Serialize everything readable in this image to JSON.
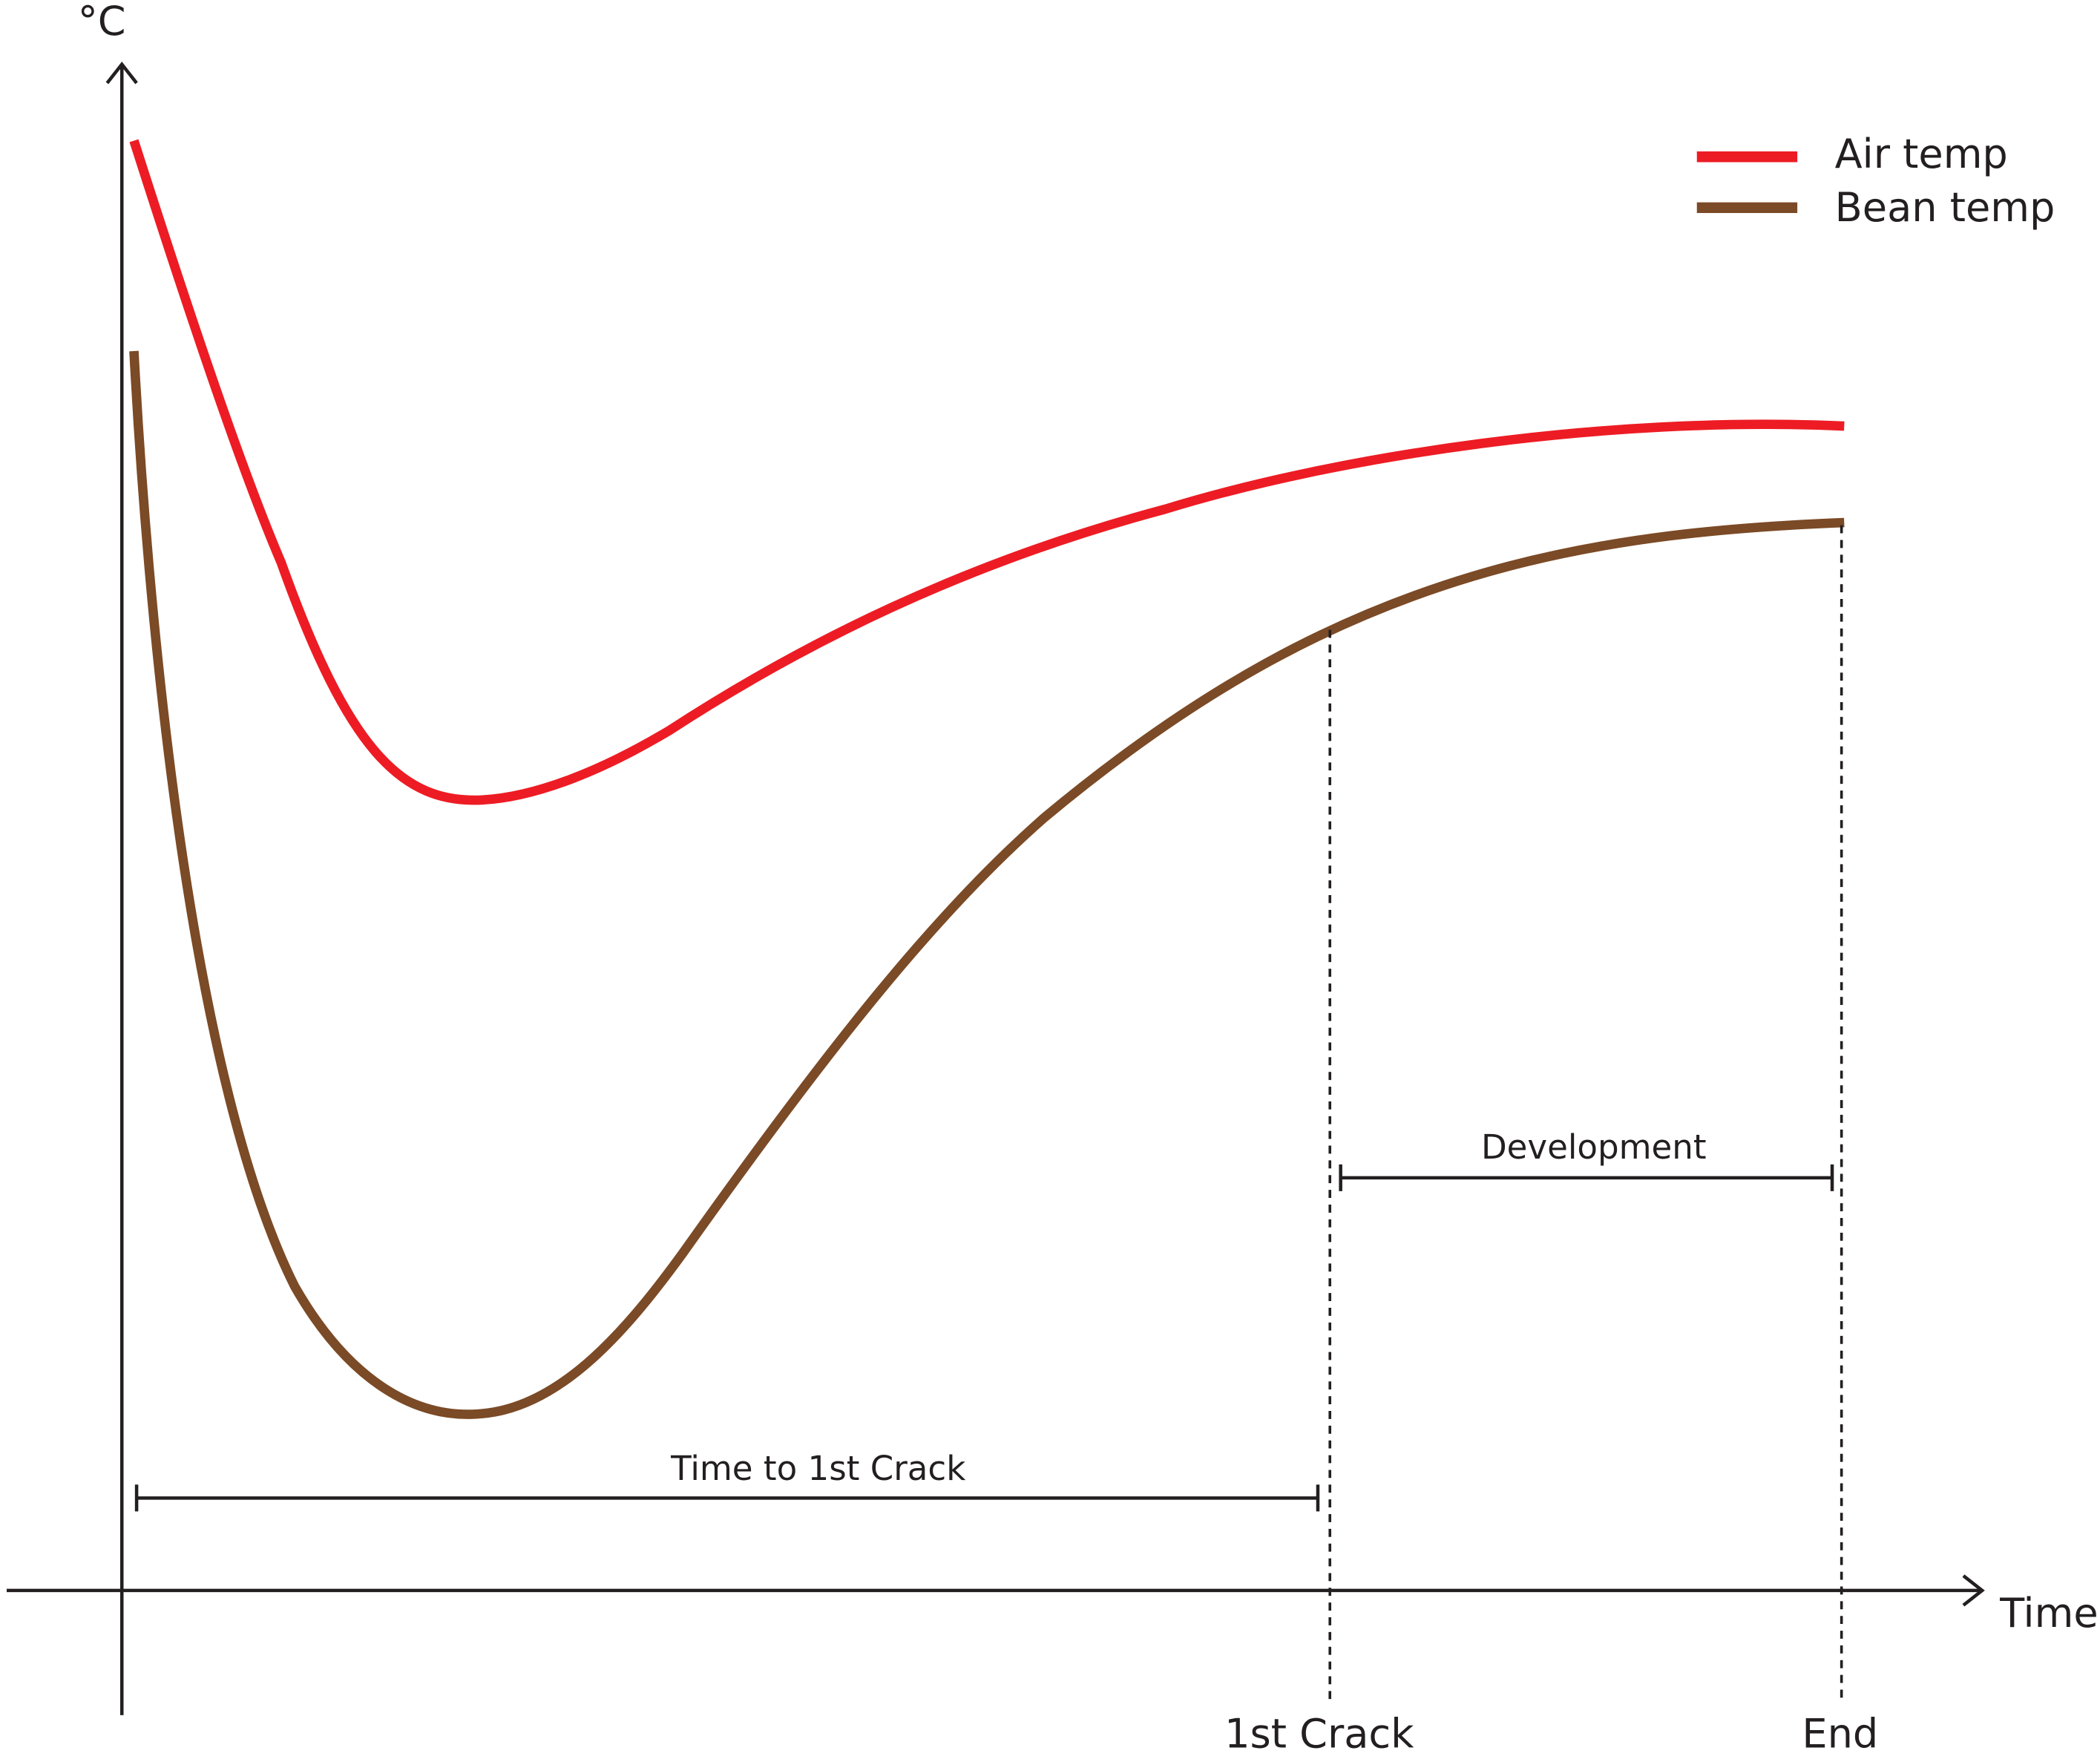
{
  "axes": {
    "y_label": "°C",
    "x_label": "Time"
  },
  "legend": [
    {
      "label": "Air temp",
      "color": "#ed1c24"
    },
    {
      "label": "Bean temp",
      "color": "#7b4a26"
    }
  ],
  "markers": {
    "first_crack": "1st Crack",
    "end": "End"
  },
  "spans": {
    "time_to_first_crack": "Time to 1st Crack",
    "development": "Development"
  }
}
